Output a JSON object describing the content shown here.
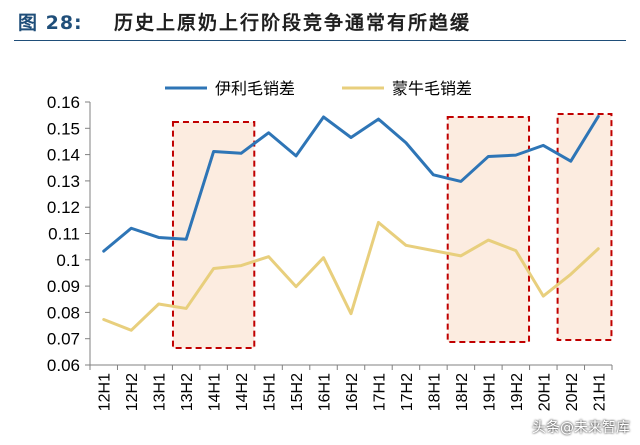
{
  "header": {
    "label": "图 28:",
    "title": "历史上原奶上行阶段竞争通常有所趋缓"
  },
  "watermark": "头条@未来智库",
  "colors": {
    "yili": "#2e75b6",
    "mengniu": "#e8cf7d",
    "highlight_stroke": "#c00000",
    "highlight_fill": "#fbe5d6",
    "title_blue": "#1f4e79"
  },
  "chart_data": {
    "type": "line",
    "categories": [
      "12H1",
      "12H2",
      "13H1",
      "13H2",
      "14H1",
      "14H2",
      "15H1",
      "15H2",
      "16H1",
      "16H2",
      "17H1",
      "17H2",
      "18H1",
      "18H2",
      "19H1",
      "19H2",
      "20H1",
      "20H2",
      "21H1"
    ],
    "series": [
      {
        "name": "伊利毛销差",
        "color": "#2e75b6",
        "values": [
          0.1033,
          0.112,
          0.1085,
          0.1078,
          0.1412,
          0.1405,
          0.1483,
          0.1395,
          0.1543,
          0.1465,
          0.1535,
          0.1445,
          0.1323,
          0.1298,
          0.1393,
          0.1398,
          0.1435,
          0.1375,
          0.1545
        ]
      },
      {
        "name": "蒙牛毛销差",
        "color": "#e8cf7d",
        "values": [
          0.0773,
          0.0732,
          0.0832,
          0.0815,
          0.0967,
          0.0978,
          0.1012,
          0.0898,
          0.1008,
          0.0795,
          0.1142,
          0.1055,
          0.1035,
          0.1015,
          0.1075,
          0.1035,
          0.0862,
          0.0945,
          0.1042
        ]
      }
    ],
    "yticks": [
      "0.06",
      "0.07",
      "0.08",
      "0.09",
      "0.1",
      "0.11",
      "0.12",
      "0.13",
      "0.14",
      "0.15",
      "0.16"
    ],
    "ylim": [
      0.06,
      0.16
    ],
    "highlight_ranges": [
      [
        "13H2",
        "14H2"
      ],
      [
        "18H2",
        "19H2"
      ],
      [
        "20H2",
        "21H1"
      ]
    ],
    "legend_position": "top-center",
    "grid": false
  }
}
